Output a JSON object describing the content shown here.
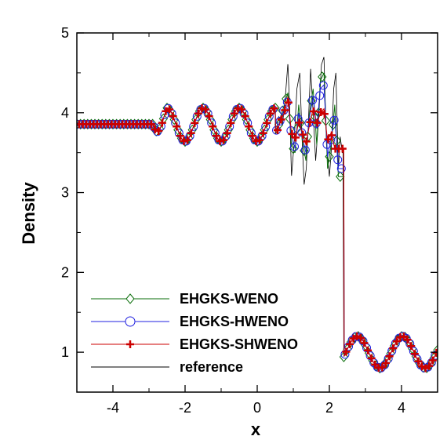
{
  "chart_data": {
    "type": "line",
    "title": "",
    "xlabel": "x",
    "ylabel": "Density",
    "xlim": [
      -5,
      5
    ],
    "ylim": [
      0.5,
      5
    ],
    "xticks": [
      -4,
      -2,
      0,
      2,
      4
    ],
    "yticks": [
      1,
      2,
      3,
      4,
      5
    ],
    "grid": false,
    "legend_position": "bottom-left",
    "series": [
      {
        "name": "EHGKS-WENO",
        "color": "#0a6e0a",
        "marker": "diamond-open"
      },
      {
        "name": "EHGKS-HWENO",
        "color": "#2020e0",
        "marker": "circle-open"
      },
      {
        "name": "EHGKS-SHWENO",
        "color": "#cc0000",
        "marker": "plus"
      },
      {
        "name": "reference",
        "color": "#000000",
        "marker": "none"
      }
    ],
    "profile": {
      "preshock_state": 3.857,
      "preshock_end_x": -2.9,
      "oscillation_start_x": -2.5,
      "oscillation_end_x": 0.5,
      "oscillation_mean": 3.85,
      "oscillation_amplitude": 0.21,
      "oscillation_period": 1.0,
      "turbulent_region": [
        0.5,
        2.4
      ],
      "shock_x": 2.4,
      "postshock_mean": 1.0,
      "postshock_amplitude": 0.2,
      "postshock_wavenumber": 5,
      "reference_samples": [
        [
          0.5,
          3.72
        ],
        [
          0.6,
          3.95
        ],
        [
          0.7,
          3.85
        ],
        [
          0.78,
          4.2
        ],
        [
          0.85,
          4.62
        ],
        [
          0.9,
          4.05
        ],
        [
          0.95,
          3.2
        ],
        [
          1.02,
          3.6
        ],
        [
          1.1,
          4.3
        ],
        [
          1.18,
          4.5
        ],
        [
          1.25,
          3.6
        ],
        [
          1.3,
          3.1
        ],
        [
          1.36,
          3.3
        ],
        [
          1.42,
          3.9
        ],
        [
          1.48,
          4.55
        ],
        [
          1.55,
          4.0
        ],
        [
          1.62,
          3.4
        ],
        [
          1.7,
          3.9
        ],
        [
          1.78,
          4.6
        ],
        [
          1.85,
          4.7
        ],
        [
          1.92,
          3.6
        ],
        [
          2.0,
          3.2
        ],
        [
          2.05,
          3.5
        ],
        [
          2.12,
          4.3
        ],
        [
          2.18,
          4.5
        ],
        [
          2.25,
          3.3
        ],
        [
          2.3,
          3.7
        ],
        [
          2.36,
          3.5
        ]
      ],
      "weno_samples": [
        [
          0.55,
          3.75
        ],
        [
          0.65,
          3.95
        ],
        [
          0.75,
          4.1
        ],
        [
          0.85,
          4.25
        ],
        [
          0.95,
          3.6
        ],
        [
          1.05,
          3.5
        ],
        [
          1.15,
          4.1
        ],
        [
          1.25,
          3.65
        ],
        [
          1.35,
          3.4
        ],
        [
          1.45,
          4.0
        ],
        [
          1.55,
          4.3
        ],
        [
          1.65,
          3.6
        ],
        [
          1.75,
          4.4
        ],
        [
          1.85,
          4.5
        ],
        [
          1.95,
          3.3
        ],
        [
          2.05,
          3.6
        ],
        [
          2.15,
          4.1
        ],
        [
          2.25,
          3.2
        ]
      ],
      "hweno_samples": [
        [
          0.55,
          3.78
        ],
        [
          0.65,
          3.92
        ],
        [
          0.75,
          4.05
        ],
        [
          0.85,
          4.15
        ],
        [
          0.95,
          3.7
        ],
        [
          1.05,
          3.55
        ],
        [
          1.15,
          4.0
        ],
        [
          1.25,
          3.7
        ],
        [
          1.35,
          3.5
        ],
        [
          1.45,
          3.95
        ],
        [
          1.55,
          4.2
        ],
        [
          1.65,
          3.8
        ],
        [
          1.75,
          4.3
        ],
        [
          1.85,
          4.35
        ],
        [
          1.95,
          3.45
        ],
        [
          2.05,
          3.7
        ],
        [
          2.15,
          3.95
        ],
        [
          2.25,
          3.3
        ]
      ],
      "shweno_samples": [
        [
          0.55,
          3.76
        ],
        [
          0.65,
          3.9
        ],
        [
          0.75,
          4.0
        ],
        [
          0.85,
          4.2
        ],
        [
          0.95,
          3.75
        ],
        [
          1.05,
          3.65
        ],
        [
          1.15,
          3.9
        ],
        [
          1.25,
          3.75
        ],
        [
          1.35,
          3.6
        ],
        [
          1.45,
          3.85
        ],
        [
          1.55,
          4.05
        ],
        [
          1.65,
          3.85
        ],
        [
          1.75,
          4.0
        ],
        [
          1.85,
          4.05
        ],
        [
          1.95,
          3.65
        ],
        [
          2.05,
          3.75
        ],
        [
          2.15,
          3.55
        ],
        [
          2.25,
          3.55
        ]
      ]
    }
  }
}
